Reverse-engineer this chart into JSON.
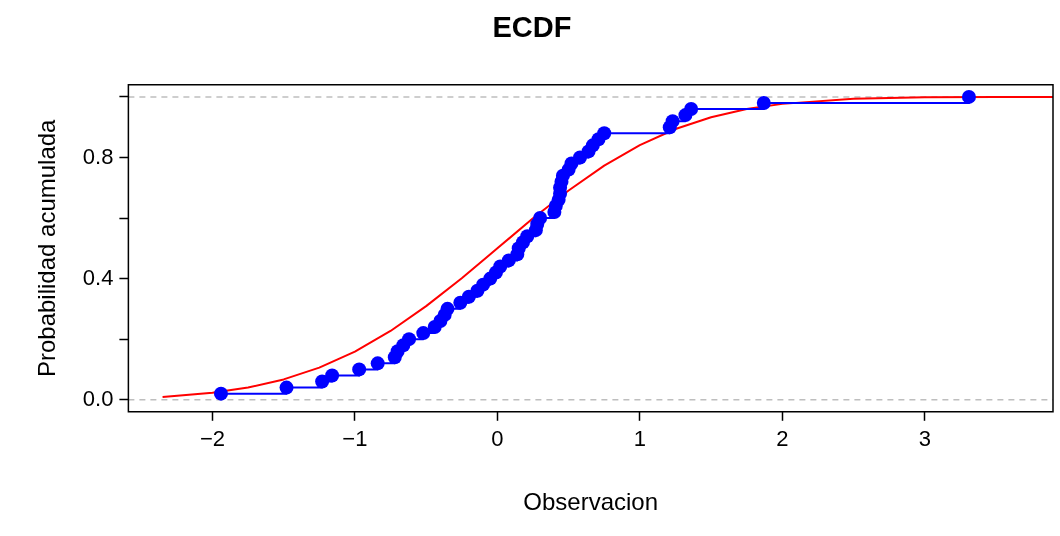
{
  "chart_data": {
    "type": "step",
    "title": "ECDF",
    "xlabel": "Observacion",
    "ylabel": "Probabilidad acumulada",
    "xlim": [
      -2.59,
      3.9
    ],
    "ylim": [
      -0.04,
      1.04
    ],
    "xticks": [
      {
        "value": -2,
        "label": "−2"
      },
      {
        "value": -1,
        "label": "−1"
      },
      0,
      1,
      2,
      3
    ],
    "yticks": [
      {
        "value": 0,
        "label": "0.0"
      },
      {
        "value": 0.2,
        "label": null
      },
      {
        "value": 0.4,
        "label": "0.4"
      },
      {
        "value": 0.6,
        "label": null
      },
      {
        "value": 0.8,
        "label": "0.8"
      },
      {
        "value": 1,
        "label": null
      }
    ],
    "grid": false,
    "legend": false,
    "ref_lines": [
      {
        "axis": "y",
        "value": 0,
        "color": "#bebebe",
        "line_style": "dashed"
      },
      {
        "axis": "y",
        "value": 1,
        "color": "#bebebe",
        "line_style": "dashed"
      }
    ],
    "series": [
      {
        "type": "step",
        "color": "#0000ff",
        "marker": "circle",
        "x": [
          -1.94,
          -1.48,
          -1.23,
          -1.16,
          -0.97,
          -0.84,
          -0.72,
          -0.7,
          -0.66,
          -0.62,
          -0.52,
          -0.44,
          -0.4,
          -0.37,
          -0.35,
          -0.26,
          -0.2,
          -0.14,
          -0.1,
          -0.05,
          -0.01,
          0.02,
          0.08,
          0.14,
          0.15,
          0.18,
          0.21,
          0.27,
          0.28,
          0.3,
          0.4,
          0.41,
          0.43,
          0.44,
          0.44,
          0.45,
          0.46,
          0.5,
          0.52,
          0.58,
          0.64,
          0.67,
          0.71,
          0.75,
          1.21,
          1.23,
          1.32,
          1.36,
          1.87,
          3.31
        ],
        "values": [
          0.02,
          0.04,
          0.06,
          0.08,
          0.1,
          0.12,
          0.14,
          0.16,
          0.18,
          0.2,
          0.22,
          0.24,
          0.26,
          0.28,
          0.3,
          0.32,
          0.34,
          0.36,
          0.38,
          0.4,
          0.42,
          0.44,
          0.46,
          0.48,
          0.5,
          0.52,
          0.54,
          0.56,
          0.58,
          0.6,
          0.62,
          0.64,
          0.66,
          0.68,
          0.7,
          0.72,
          0.74,
          0.76,
          0.78,
          0.8,
          0.82,
          0.84,
          0.86,
          0.88,
          0.9,
          0.92,
          0.94,
          0.96,
          0.98,
          1
        ]
      },
      {
        "type": "line",
        "color": "#ff0000",
        "marker": "none",
        "x": [
          -2.35,
          -2,
          -1.75,
          -1.5,
          -1.25,
          -1,
          -0.75,
          -0.5,
          -0.25,
          0,
          0.25,
          0.5,
          0.75,
          1,
          1.25,
          1.5,
          1.75,
          2,
          2.5,
          3,
          3.5,
          3.9
        ],
        "values": [
          0.009,
          0.023,
          0.04,
          0.067,
          0.106,
          0.159,
          0.227,
          0.309,
          0.401,
          0.5,
          0.599,
          0.691,
          0.773,
          0.841,
          0.894,
          0.933,
          0.96,
          0.977,
          0.994,
          0.999,
          1,
          1
        ]
      }
    ]
  }
}
